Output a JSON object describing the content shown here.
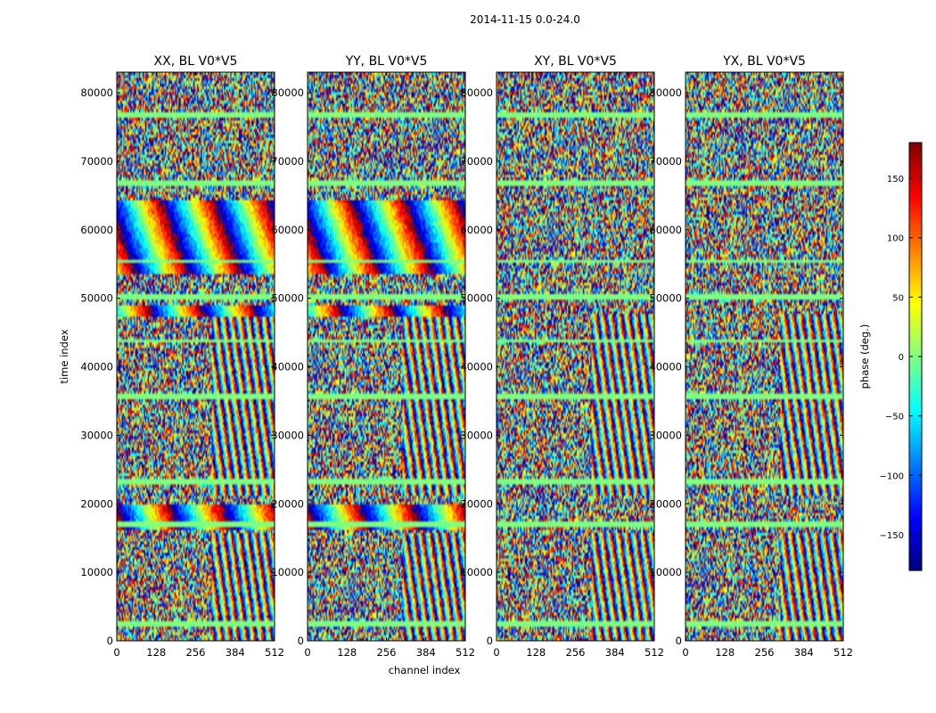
{
  "chart_data": {
    "type": "heatmap",
    "suptitle": "2014-11-15 0.0-24.0",
    "xlabel": "channel index",
    "ylabel": "time index",
    "xlim": [
      0,
      512
    ],
    "ylim": [
      0,
      83000
    ],
    "xticks": [
      "0",
      "128",
      "256",
      "384",
      "512"
    ],
    "yticks": [
      "0",
      "10000",
      "20000",
      "30000",
      "40000",
      "50000",
      "60000",
      "70000",
      "80000"
    ],
    "colormap": "jet",
    "colorbar": {
      "label": "phase (deg.)",
      "range": [
        -180,
        180
      ],
      "ticks": [
        "150",
        "100",
        "50",
        "0",
        "−50",
        "−100",
        "−150"
      ]
    },
    "panels": [
      {
        "title": "XX, BL V0*V5"
      },
      {
        "title": "YY, BL V0*V5"
      },
      {
        "title": "XY, BL V0*V5"
      },
      {
        "title": "YX, BL V0*V5"
      }
    ]
  }
}
